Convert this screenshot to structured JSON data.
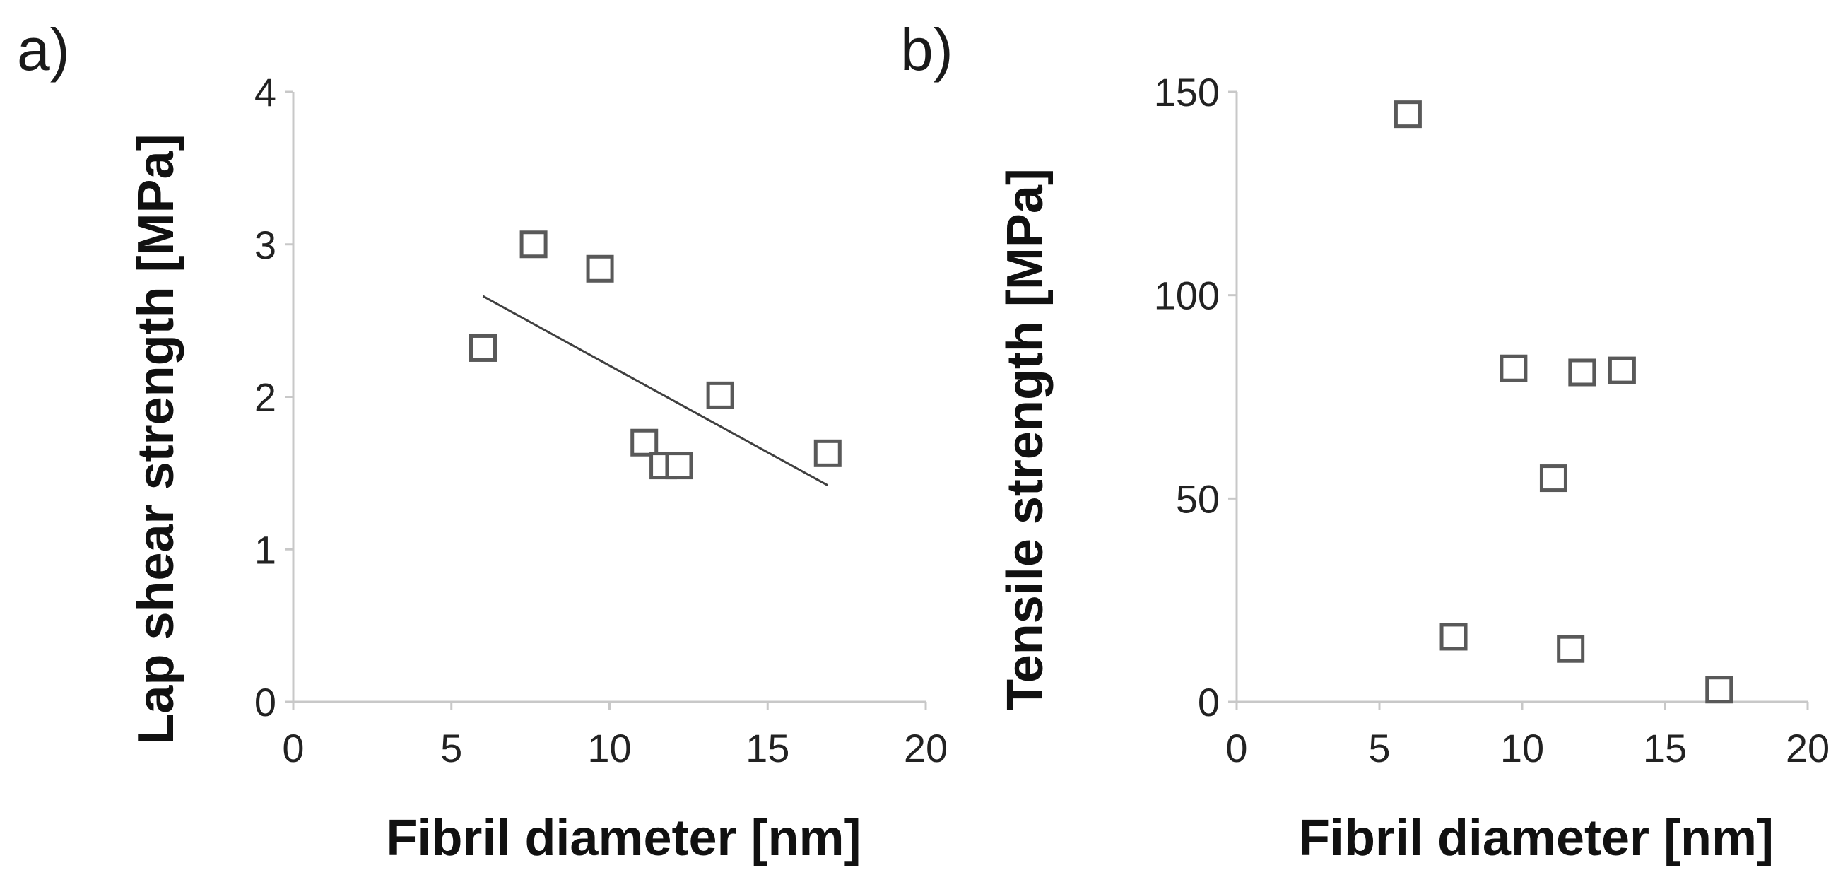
{
  "chart_data": [
    {
      "id": "a",
      "panel_label": "a)",
      "type": "scatter",
      "xlabel": "Fibril diameter [nm]",
      "ylabel": "Lap shear strength [MPa]",
      "xlim": [
        0,
        20
      ],
      "ylim": [
        0,
        4
      ],
      "xticks": [
        0,
        5,
        10,
        15,
        20
      ],
      "yticks": [
        0,
        1,
        2,
        3,
        4
      ],
      "grid": false,
      "points": [
        {
          "x": 6.0,
          "y": 2.32
        },
        {
          "x": 7.6,
          "y": 3.0
        },
        {
          "x": 9.7,
          "y": 2.84
        },
        {
          "x": 11.1,
          "y": 1.7
        },
        {
          "x": 11.7,
          "y": 1.55
        },
        {
          "x": 12.2,
          "y": 1.55
        },
        {
          "x": 13.5,
          "y": 2.01
        },
        {
          "x": 16.9,
          "y": 1.63
        }
      ],
      "trendline": {
        "x": [
          6.0,
          16.9
        ],
        "y": [
          2.66,
          1.42
        ]
      }
    },
    {
      "id": "b",
      "panel_label": "b)",
      "type": "scatter",
      "xlabel": "Fibril diameter [nm]",
      "ylabel": "Tensile strength [MPa]",
      "xlim": [
        0,
        20
      ],
      "ylim": [
        0,
        150
      ],
      "xticks": [
        0,
        5,
        10,
        15,
        20
      ],
      "yticks": [
        0,
        50,
        100,
        150
      ],
      "grid": false,
      "points": [
        {
          "x": 6.0,
          "y": 144.5
        },
        {
          "x": 7.6,
          "y": 16
        },
        {
          "x": 9.7,
          "y": 82
        },
        {
          "x": 11.1,
          "y": 55
        },
        {
          "x": 11.7,
          "y": 13
        },
        {
          "x": 12.1,
          "y": 81
        },
        {
          "x": 13.5,
          "y": 81.5
        },
        {
          "x": 16.9,
          "y": 3
        }
      ]
    }
  ]
}
